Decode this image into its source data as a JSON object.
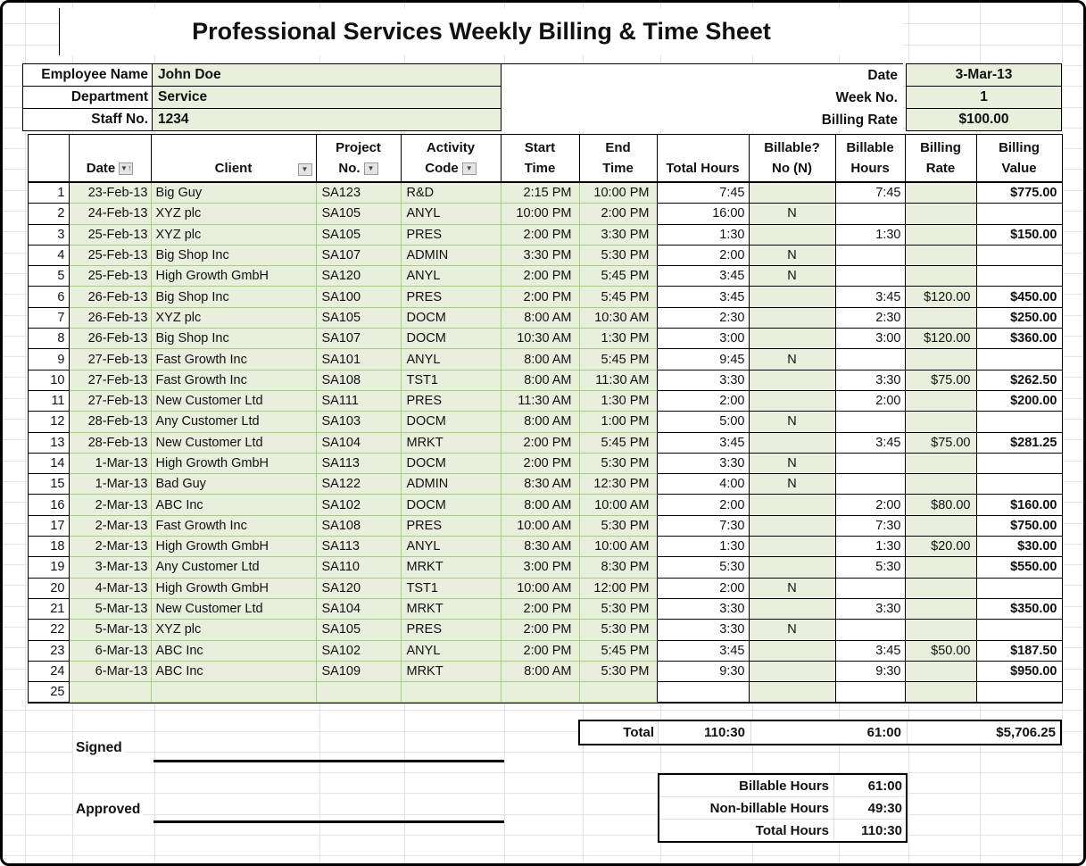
{
  "title": "Professional Services Weekly Billing & Time Sheet",
  "info": {
    "employee_label": "Employee Name",
    "employee_value": "John Doe",
    "department_label": "Department",
    "department_value": "Service",
    "staff_label": "Staff No.",
    "staff_value": "1234"
  },
  "meta": {
    "date_label": "Date",
    "date_value": "3-Mar-13",
    "week_label": "Week No.",
    "week_value": "1",
    "rate_label": "Billing Rate",
    "rate_value": "$100.00"
  },
  "table": {
    "headers": {
      "date": {
        "l1": "",
        "l2": "Date"
      },
      "client": {
        "l1": "",
        "l2": "Client"
      },
      "project": {
        "l1": "Project",
        "l2": "No."
      },
      "activity": {
        "l1": "Activity",
        "l2": "Code"
      },
      "start": {
        "l1": "Start",
        "l2": "Time"
      },
      "end": {
        "l1": "End",
        "l2": "Time"
      },
      "total": {
        "l1": "",
        "l2": "Total Hours"
      },
      "billable_q": {
        "l1": "Billable?",
        "l2": "No (N)"
      },
      "billable_hours": {
        "l1": "Billable",
        "l2": "Hours"
      },
      "billing_rate": {
        "l1": "Billing",
        "l2": "Rate"
      },
      "billing_value": {
        "l1": "Billing",
        "l2": "Value"
      }
    },
    "filter_icons": {
      "dropdown": "▼",
      "sort_ascending": "↑"
    },
    "rows": [
      {
        "num": "1",
        "date": "23-Feb-13",
        "client": "Big Guy",
        "project": "SA123",
        "activity": "R&D",
        "start": "2:15 PM",
        "end": "10:00 PM",
        "total": "7:45",
        "billable": "",
        "bill_hours": "7:45",
        "rate": "",
        "value": "$775.00"
      },
      {
        "num": "2",
        "date": "24-Feb-13",
        "client": "XYZ plc",
        "project": "SA105",
        "activity": "ANYL",
        "start": "10:00 PM",
        "end": "2:00 PM",
        "total": "16:00",
        "billable": "N",
        "bill_hours": "",
        "rate": "",
        "value": ""
      },
      {
        "num": "3",
        "date": "25-Feb-13",
        "client": "XYZ plc",
        "project": "SA105",
        "activity": "PRES",
        "start": "2:00 PM",
        "end": "3:30 PM",
        "total": "1:30",
        "billable": "",
        "bill_hours": "1:30",
        "rate": "",
        "value": "$150.00"
      },
      {
        "num": "4",
        "date": "25-Feb-13",
        "client": "Big Shop Inc",
        "project": "SA107",
        "activity": "ADMIN",
        "start": "3:30 PM",
        "end": "5:30 PM",
        "total": "2:00",
        "billable": "N",
        "bill_hours": "",
        "rate": "",
        "value": ""
      },
      {
        "num": "5",
        "date": "25-Feb-13",
        "client": "High Growth GmbH",
        "project": "SA120",
        "activity": "ANYL",
        "start": "2:00 PM",
        "end": "5:45 PM",
        "total": "3:45",
        "billable": "N",
        "bill_hours": "",
        "rate": "",
        "value": ""
      },
      {
        "num": "6",
        "date": "26-Feb-13",
        "client": "Big Shop Inc",
        "project": "SA100",
        "activity": "PRES",
        "start": "2:00 PM",
        "end": "5:45 PM",
        "total": "3:45",
        "billable": "",
        "bill_hours": "3:45",
        "rate": "$120.00",
        "value": "$450.00"
      },
      {
        "num": "7",
        "date": "26-Feb-13",
        "client": "XYZ plc",
        "project": "SA105",
        "activity": "DOCM",
        "start": "8:00 AM",
        "end": "10:30 AM",
        "total": "2:30",
        "billable": "",
        "bill_hours": "2:30",
        "rate": "",
        "value": "$250.00"
      },
      {
        "num": "8",
        "date": "26-Feb-13",
        "client": "Big Shop Inc",
        "project": "SA107",
        "activity": "DOCM",
        "start": "10:30 AM",
        "end": "1:30 PM",
        "total": "3:00",
        "billable": "",
        "bill_hours": "3:00",
        "rate": "$120.00",
        "value": "$360.00"
      },
      {
        "num": "9",
        "date": "27-Feb-13",
        "client": "Fast Growth Inc",
        "project": "SA101",
        "activity": "ANYL",
        "start": "8:00 AM",
        "end": "5:45 PM",
        "total": "9:45",
        "billable": "N",
        "bill_hours": "",
        "rate": "",
        "value": ""
      },
      {
        "num": "10",
        "date": "27-Feb-13",
        "client": "Fast Growth Inc",
        "project": "SA108",
        "activity": "TST1",
        "start": "8:00 AM",
        "end": "11:30 AM",
        "total": "3:30",
        "billable": "",
        "bill_hours": "3:30",
        "rate": "$75.00",
        "value": "$262.50"
      },
      {
        "num": "11",
        "date": "27-Feb-13",
        "client": "New Customer Ltd",
        "project": "SA111",
        "activity": "PRES",
        "start": "11:30 AM",
        "end": "1:30 PM",
        "total": "2:00",
        "billable": "",
        "bill_hours": "2:00",
        "rate": "",
        "value": "$200.00"
      },
      {
        "num": "12",
        "date": "28-Feb-13",
        "client": "Any Customer Ltd",
        "project": "SA103",
        "activity": "DOCM",
        "start": "8:00 AM",
        "end": "1:00 PM",
        "total": "5:00",
        "billable": "N",
        "bill_hours": "",
        "rate": "",
        "value": ""
      },
      {
        "num": "13",
        "date": "28-Feb-13",
        "client": "New Customer Ltd",
        "project": "SA104",
        "activity": "MRKT",
        "start": "2:00 PM",
        "end": "5:45 PM",
        "total": "3:45",
        "billable": "",
        "bill_hours": "3:45",
        "rate": "$75.00",
        "value": "$281.25"
      },
      {
        "num": "14",
        "date": "1-Mar-13",
        "client": "High Growth GmbH",
        "project": "SA113",
        "activity": "DOCM",
        "start": "2:00 PM",
        "end": "5:30 PM",
        "total": "3:30",
        "billable": "N",
        "bill_hours": "",
        "rate": "",
        "value": ""
      },
      {
        "num": "15",
        "date": "1-Mar-13",
        "client": "Bad Guy",
        "project": "SA122",
        "activity": "ADMIN",
        "start": "8:30 AM",
        "end": "12:30 PM",
        "total": "4:00",
        "billable": "N",
        "bill_hours": "",
        "rate": "",
        "value": ""
      },
      {
        "num": "16",
        "date": "2-Mar-13",
        "client": "ABC Inc",
        "project": "SA102",
        "activity": "DOCM",
        "start": "8:00 AM",
        "end": "10:00 AM",
        "total": "2:00",
        "billable": "",
        "bill_hours": "2:00",
        "rate": "$80.00",
        "value": "$160.00"
      },
      {
        "num": "17",
        "date": "2-Mar-13",
        "client": "Fast Growth Inc",
        "project": "SA108",
        "activity": "PRES",
        "start": "10:00 AM",
        "end": "5:30 PM",
        "total": "7:30",
        "billable": "",
        "bill_hours": "7:30",
        "rate": "",
        "value": "$750.00"
      },
      {
        "num": "18",
        "date": "2-Mar-13",
        "client": "High Growth GmbH",
        "project": "SA113",
        "activity": "ANYL",
        "start": "8:30 AM",
        "end": "10:00 AM",
        "total": "1:30",
        "billable": "",
        "bill_hours": "1:30",
        "rate": "$20.00",
        "value": "$30.00"
      },
      {
        "num": "19",
        "date": "3-Mar-13",
        "client": "Any Customer Ltd",
        "project": "SA110",
        "activity": "MRKT",
        "start": "3:00 PM",
        "end": "8:30 PM",
        "total": "5:30",
        "billable": "",
        "bill_hours": "5:30",
        "rate": "",
        "value": "$550.00"
      },
      {
        "num": "20",
        "date": "4-Mar-13",
        "client": "High Growth GmbH",
        "project": "SA120",
        "activity": "TST1",
        "start": "10:00 AM",
        "end": "12:00 PM",
        "total": "2:00",
        "billable": "N",
        "bill_hours": "",
        "rate": "",
        "value": ""
      },
      {
        "num": "21",
        "date": "5-Mar-13",
        "client": "New Customer Ltd",
        "project": "SA104",
        "activity": "MRKT",
        "start": "2:00 PM",
        "end": "5:30 PM",
        "total": "3:30",
        "billable": "",
        "bill_hours": "3:30",
        "rate": "",
        "value": "$350.00"
      },
      {
        "num": "22",
        "date": "5-Mar-13",
        "client": "XYZ plc",
        "project": "SA105",
        "activity": "PRES",
        "start": "2:00 PM",
        "end": "5:30 PM",
        "total": "3:30",
        "billable": "N",
        "bill_hours": "",
        "rate": "",
        "value": ""
      },
      {
        "num": "23",
        "date": "6-Mar-13",
        "client": "ABC Inc",
        "project": "SA102",
        "activity": "ANYL",
        "start": "2:00 PM",
        "end": "5:45 PM",
        "total": "3:45",
        "billable": "",
        "bill_hours": "3:45",
        "rate": "$50.00",
        "value": "$187.50"
      },
      {
        "num": "24",
        "date": "6-Mar-13",
        "client": "ABC Inc",
        "project": "SA109",
        "activity": "MRKT",
        "start": "8:00 AM",
        "end": "5:30 PM",
        "total": "9:30",
        "billable": "",
        "bill_hours": "9:30",
        "rate": "",
        "value": "$950.00"
      },
      {
        "num": "25",
        "date": "",
        "client": "",
        "project": "",
        "activity": "",
        "start": "",
        "end": "",
        "total": "",
        "billable": "",
        "bill_hours": "",
        "rate": "",
        "value": ""
      }
    ]
  },
  "totals": {
    "label": "Total",
    "total_hours": "110:30",
    "billable_hours": "61:00",
    "billing_value": "$5,706.25"
  },
  "summary": [
    {
      "label": "Billable Hours",
      "value": "61:00"
    },
    {
      "label": "Non-billable Hours",
      "value": "49:30"
    },
    {
      "label": "Total Hours",
      "value": "110:30"
    }
  ],
  "signature": {
    "signed_label": "Signed",
    "approved_label": "Approved"
  },
  "colors": {
    "cell_fill_green": "#e9efdd",
    "cell_border_green": "#a6cd84"
  }
}
